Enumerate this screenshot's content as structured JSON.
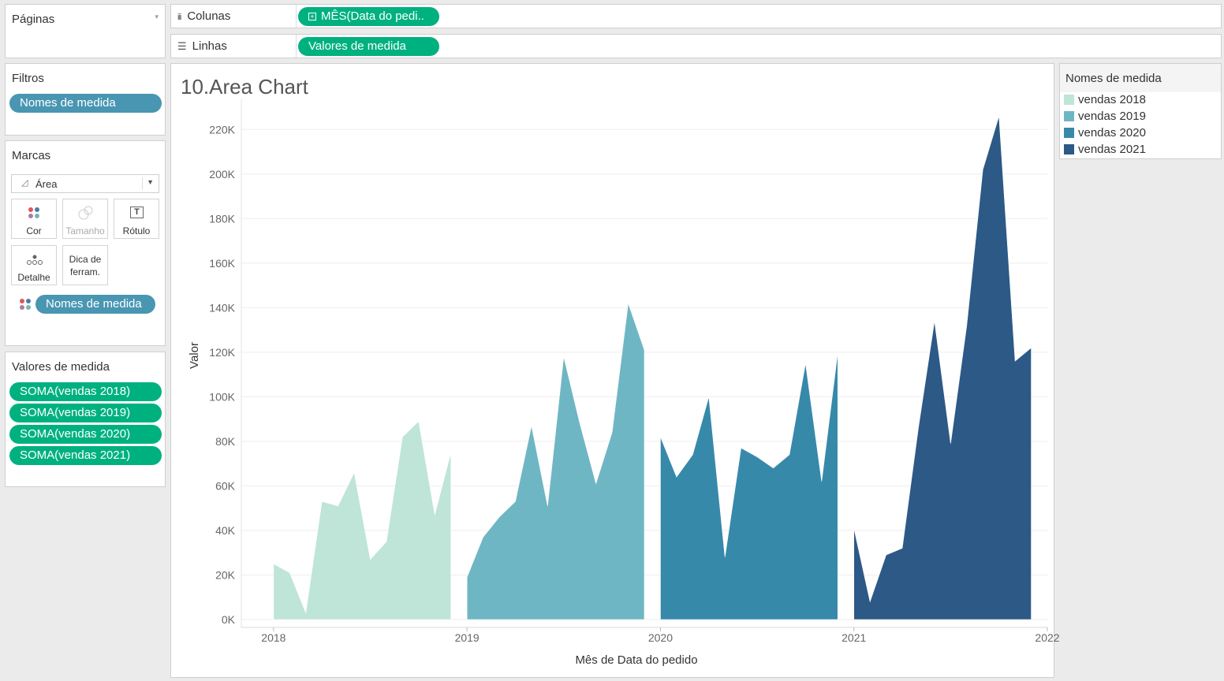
{
  "pages_panel": {
    "title": "Páginas"
  },
  "columns_shelf": {
    "label": "Colunas",
    "pill": "MÊS(Data do pedi.."
  },
  "rows_shelf": {
    "label": "Linhas",
    "pill": "Valores de medida"
  },
  "filters_panel": {
    "title": "Filtros",
    "pill": "Nomes de medida"
  },
  "marks_panel": {
    "title": "Marcas",
    "mark_type": "Área",
    "buttons": {
      "color": "Cor",
      "size": "Tamanho",
      "label": "Rótulo",
      "detail": "Detalhe",
      "tooltip_line1": "Dica de",
      "tooltip_line2": "ferram."
    },
    "color_pill": "Nomes de medida"
  },
  "measure_values_panel": {
    "title": "Valores de medida",
    "pills": [
      "SOMA(vendas 2018)",
      "SOMA(vendas 2019)",
      "SOMA(vendas 2020)",
      "SOMA(vendas 2021)"
    ]
  },
  "legend": {
    "title": "Nomes de medida",
    "items": [
      {
        "label": "vendas 2018",
        "color": "#bfe4d8"
      },
      {
        "label": "vendas 2019",
        "color": "#6fb6c4"
      },
      {
        "label": "vendas 2020",
        "color": "#3789aa"
      },
      {
        "label": "vendas 2021",
        "color": "#2c5986"
      }
    ]
  },
  "chart_data": {
    "type": "area",
    "title": "10.Area Chart",
    "xlabel": "Mês de Data do pedido",
    "ylabel": "Valor",
    "x_ticks": [
      "2018",
      "2019",
      "2020",
      "2021",
      "2022"
    ],
    "y_ticks": [
      "0K",
      "20K",
      "40K",
      "60K",
      "80K",
      "100K",
      "120K",
      "140K",
      "160K",
      "180K",
      "200K",
      "220K"
    ],
    "ylim": [
      0,
      230000
    ],
    "xlim": [
      "2017-11",
      "2022-01"
    ],
    "grid": true,
    "legend_position": "right",
    "series": [
      {
        "name": "vendas 2018",
        "color": "#bfe4d8",
        "start": "2018-01",
        "values": [
          25000,
          21000,
          3000,
          53000,
          51000,
          66000,
          27000,
          35000,
          82000,
          89000,
          47000,
          75000
        ]
      },
      {
        "name": "vendas 2019",
        "color": "#6fb6c4",
        "start": "2019-01",
        "values": [
          19000,
          37000,
          46000,
          53000,
          87000,
          51000,
          118000,
          88000,
          61000,
          84000,
          142000,
          121000
        ]
      },
      {
        "name": "vendas 2020",
        "color": "#3789aa",
        "start": "2020-01",
        "values": [
          82000,
          64000,
          74000,
          100000,
          28000,
          77000,
          73000,
          68000,
          74000,
          115000,
          62000,
          120000
        ]
      },
      {
        "name": "vendas 2021",
        "color": "#2c5986",
        "start": "2021-01",
        "values": [
          41000,
          8000,
          29000,
          32000,
          86000,
          134000,
          79000,
          132000,
          202000,
          226000,
          116000,
          122000
        ]
      }
    ]
  }
}
